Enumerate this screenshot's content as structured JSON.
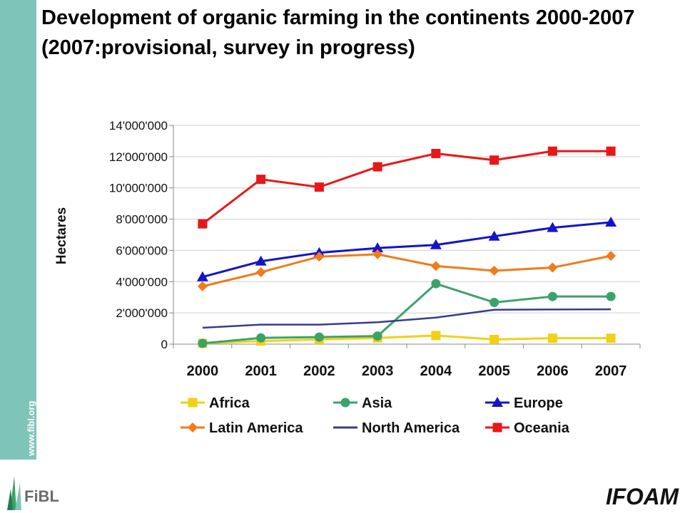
{
  "header": {
    "title": "Development of organic farming in the continents 2000-2007 (2007:provisional, survey in progress)"
  },
  "sidebar": {
    "url": "www.fibl.org"
  },
  "logos": {
    "left": "FiBL",
    "right": "IFOAM"
  },
  "chart_data": {
    "type": "line",
    "title": "",
    "xlabel": "",
    "ylabel": "Hectares",
    "ylim": [
      0,
      14000000
    ],
    "yticks": [
      "0",
      "2'000'000",
      "4'000'000",
      "6'000'000",
      "8'000'000",
      "10'000'000",
      "12'000'000",
      "14'000'000"
    ],
    "ytick_values": [
      0,
      2000000,
      4000000,
      6000000,
      8000000,
      10000000,
      12000000,
      14000000
    ],
    "categories": [
      "2000",
      "2001",
      "2002",
      "2003",
      "2004",
      "2005",
      "2006",
      "2007"
    ],
    "grid": true,
    "legend": "bottom",
    "series": [
      {
        "name": "Africa",
        "color": "#f2d015",
        "marker": "square",
        "values": [
          50000,
          200000,
          300000,
          400000,
          550000,
          300000,
          380000,
          380000
        ]
      },
      {
        "name": "Asia",
        "color": "#3aa36a",
        "marker": "circle",
        "values": [
          50000,
          400000,
          450000,
          520000,
          3870000,
          2670000,
          3050000,
          3050000
        ]
      },
      {
        "name": "Europe",
        "color": "#1414c8",
        "marker": "triangle",
        "values": [
          4300000,
          5300000,
          5850000,
          6150000,
          6350000,
          6900000,
          7450000,
          7800000
        ]
      },
      {
        "name": "Latin America",
        "color": "#f27a1a",
        "marker": "diamond",
        "values": [
          3700000,
          4600000,
          5600000,
          5750000,
          5000000,
          4700000,
          4900000,
          5650000
        ]
      },
      {
        "name": "North America",
        "color": "#3a3a8c",
        "marker": "none",
        "values": [
          1050000,
          1250000,
          1250000,
          1400000,
          1700000,
          2200000,
          2220000,
          2230000
        ]
      },
      {
        "name": "Oceania",
        "color": "#e81818",
        "marker": "square",
        "values": [
          7700000,
          10550000,
          10050000,
          11350000,
          12200000,
          11780000,
          12350000,
          12350000
        ]
      }
    ]
  }
}
